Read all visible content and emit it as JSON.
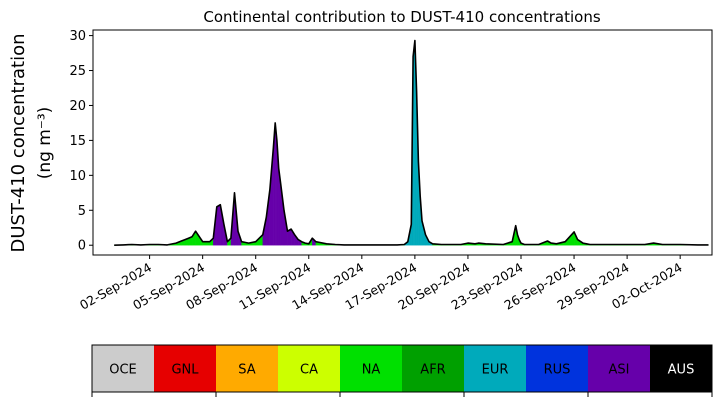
{
  "chart_data": {
    "type": "area",
    "title": "Continental contribution to DUST-410 concentrations",
    "ylabel_line1": "DUST-410 concentration",
    "ylabel_line2": "(ng m⁻³)",
    "xlabel": "",
    "ylim": [
      -1.4,
      30.8
    ],
    "yticks": [
      0,
      5,
      10,
      15,
      20,
      25,
      30
    ],
    "xlim_days": [
      -2.2,
      32.8
    ],
    "x_tick_labels": [
      "02-Sep-2024",
      "05-Sep-2024",
      "08-Sep-2024",
      "11-Sep-2024",
      "14-Sep-2024",
      "17-Sep-2024",
      "20-Sep-2024",
      "23-Sep-2024",
      "26-Sep-2024",
      "29-Sep-2024",
      "02-Oct-2024"
    ],
    "legend_placement": "bottom colorbar",
    "stack_order": [
      "OCE",
      "GNL",
      "SA",
      "CA",
      "NA",
      "AFR",
      "EUR",
      "RUS",
      "ASI",
      "AUS"
    ],
    "categories": [
      {
        "name": "OCE",
        "color": "#cccccc",
        "text_color": "#000000"
      },
      {
        "name": "GNL",
        "color": "#e60000",
        "text_color": "#000000"
      },
      {
        "name": "SA",
        "color": "#ffaa00",
        "text_color": "#000000"
      },
      {
        "name": "CA",
        "color": "#ccff00",
        "text_color": "#000000"
      },
      {
        "name": "NA",
        "color": "#00e000",
        "text_color": "#000000"
      },
      {
        "name": "AFR",
        "color": "#00a000",
        "text_color": "#000000"
      },
      {
        "name": "EUR",
        "color": "#00aabb",
        "text_color": "#000000"
      },
      {
        "name": "RUS",
        "color": "#0033dd",
        "text_color": "#000000"
      },
      {
        "name": "ASI",
        "color": "#6600aa",
        "text_color": "#000000"
      },
      {
        "name": "AUS",
        "color": "#000000",
        "text_color": "#ffffff"
      }
    ],
    "series_days": [
      -1.0,
      -0.5,
      0.0,
      0.5,
      1.0,
      1.5,
      2.0,
      2.5,
      2.8,
      3.0,
      3.2,
      3.4,
      3.6,
      4.0,
      4.4,
      4.6,
      4.8,
      5.0,
      5.2,
      5.4,
      5.6,
      5.8,
      6.0,
      6.2,
      6.4,
      6.6,
      7.0,
      7.4,
      7.6,
      7.8,
      8.0,
      8.1,
      8.2,
      8.3,
      8.4,
      8.6,
      8.8,
      9.0,
      9.2,
      9.4,
      9.6,
      9.8,
      10.0,
      10.2,
      10.4,
      10.6,
      11.0,
      11.5,
      12.0,
      13.0,
      14.0,
      15.0,
      15.4,
      15.6,
      15.8,
      15.9,
      16.0,
      16.1,
      16.2,
      16.3,
      16.4,
      16.6,
      16.8,
      17.0,
      17.5,
      18.0,
      18.6,
      19.0,
      19.4,
      19.6,
      20.0,
      21.0,
      21.5,
      21.7,
      21.8,
      21.9,
      22.0,
      22.2,
      22.5,
      23.0,
      23.5,
      23.7,
      24.0,
      24.5,
      25.0,
      25.2,
      25.5,
      25.7,
      25.9,
      26.0,
      26.3,
      27.0,
      28.0,
      29.0,
      29.5,
      30.0,
      31.0,
      32.0,
      32.6
    ],
    "series_totals": [
      0.0,
      0.05,
      0.1,
      0.05,
      0.1,
      0.1,
      0.05,
      0.3,
      0.6,
      0.8,
      1.0,
      1.2,
      2.0,
      0.5,
      0.5,
      1.0,
      5.5,
      5.8,
      3.0,
      0.5,
      1.0,
      7.5,
      2.0,
      0.5,
      0.4,
      0.3,
      0.5,
      1.5,
      4.0,
      8.0,
      14.0,
      17.5,
      15.0,
      11.0,
      9.0,
      5.0,
      2.0,
      2.3,
      1.5,
      0.8,
      0.5,
      0.3,
      0.2,
      1.0,
      0.5,
      0.4,
      0.2,
      0.1,
      0.05,
      0.05,
      0.05,
      0.05,
      0.1,
      0.5,
      3.0,
      27.0,
      29.3,
      22.0,
      12.0,
      7.0,
      3.5,
      1.5,
      0.5,
      0.2,
      0.1,
      0.1,
      0.1,
      0.3,
      0.2,
      0.3,
      0.2,
      0.1,
      0.5,
      2.8,
      1.5,
      0.8,
      0.3,
      0.1,
      0.1,
      0.1,
      0.6,
      0.3,
      0.2,
      0.5,
      1.9,
      0.8,
      0.3,
      0.2,
      0.1,
      0.1,
      0.1,
      0.1,
      0.1,
      0.1,
      0.3,
      0.1,
      0.1,
      0.05,
      0.05
    ],
    "series_dominant": [
      "NA",
      "NA",
      "NA",
      "NA",
      "NA",
      "NA",
      "NA",
      "NA",
      "NA",
      "NA",
      "NA",
      "NA",
      "NA",
      "NA",
      "NA",
      "ASI",
      "ASI",
      "ASI",
      "ASI",
      "NA",
      "ASI",
      "ASI",
      "ASI",
      "NA",
      "NA",
      "NA",
      "NA",
      "ASI",
      "ASI",
      "ASI",
      "ASI",
      "ASI",
      "ASI",
      "ASI",
      "ASI",
      "ASI",
      "ASI",
      "ASI",
      "ASI",
      "ASI",
      "NA",
      "NA",
      "NA",
      "ASI",
      "NA",
      "NA",
      "NA",
      "NA",
      "NA",
      "NA",
      "NA",
      "NA",
      "EUR",
      "EUR",
      "EUR",
      "EUR",
      "EUR",
      "EUR",
      "EUR",
      "EUR",
      "EUR",
      "EUR",
      "EUR",
      "NA",
      "NA",
      "NA",
      "NA",
      "NA",
      "NA",
      "NA",
      "NA",
      "NA",
      "NA",
      "NA",
      "NA",
      "NA",
      "NA",
      "NA",
      "NA",
      "NA",
      "NA",
      "NA",
      "NA",
      "NA",
      "NA",
      "NA",
      "NA",
      "NA",
      "NA",
      "NA",
      "NA",
      "NA",
      "NA",
      "NA",
      "NA",
      "NA",
      "NA",
      "NA",
      "NA"
    ]
  }
}
